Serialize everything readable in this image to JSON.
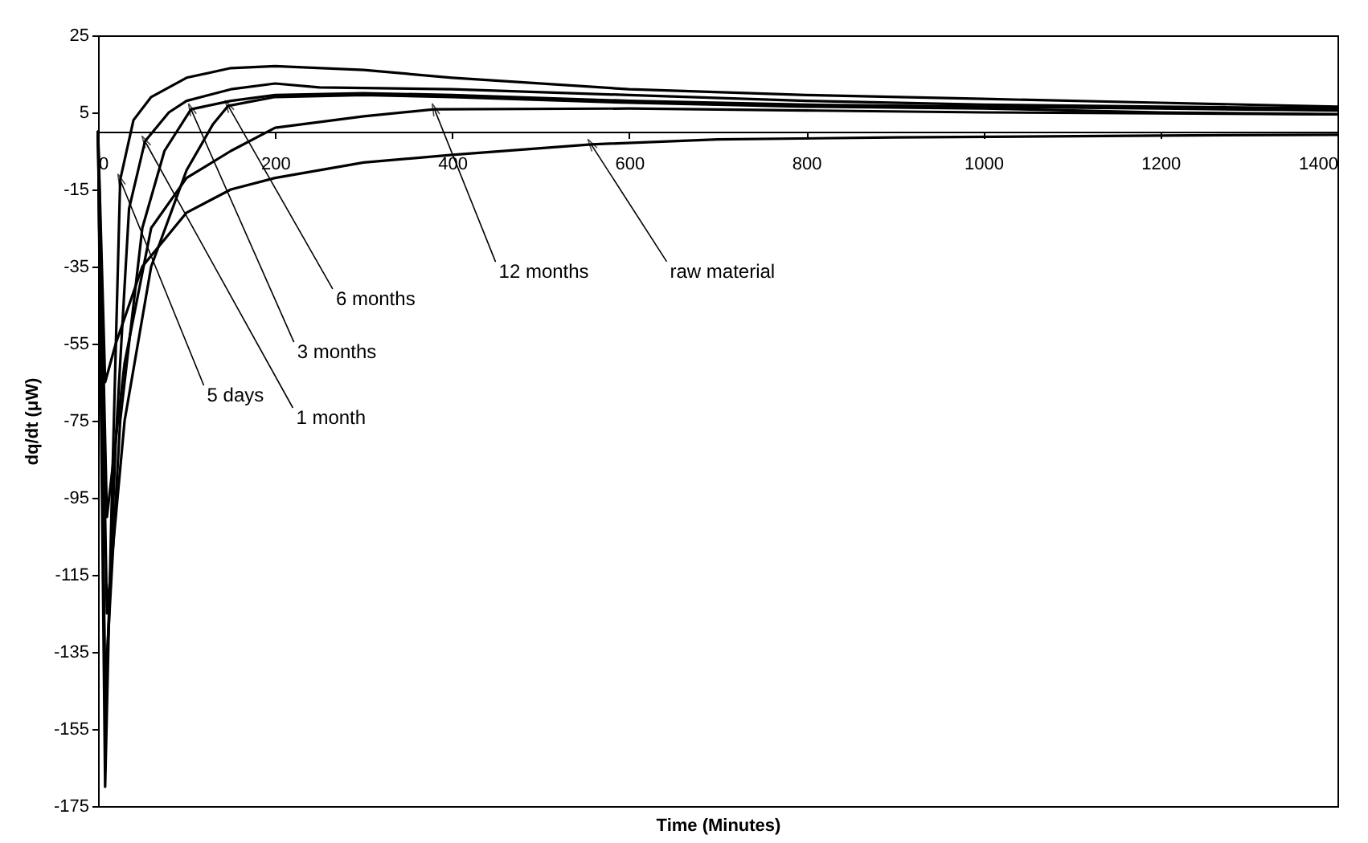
{
  "chart_data": {
    "type": "line",
    "xlabel": "Time (Minutes)",
    "ylabel": "dq/dt (μW)",
    "xlim": [
      0,
      1400
    ],
    "ylim": [
      -175,
      25
    ],
    "xticks": [
      0,
      200,
      400,
      600,
      800,
      1000,
      1200,
      1400
    ],
    "yticks": [
      25,
      5,
      -15,
      -35,
      -55,
      -75,
      -95,
      -115,
      -135,
      -155,
      -175
    ],
    "grid": false,
    "legend": false,
    "marker": "none",
    "line_style": "solid",
    "series": [
      {
        "color": "#000000",
        "x": [
          0,
          8,
          15,
          25,
          40,
          60,
          100,
          150,
          200,
          300,
          400,
          600,
          800,
          1000,
          1200,
          1400
        ],
        "values": [
          0,
          -170,
          -100,
          -12.5,
          3,
          9,
          14,
          16.5,
          17,
          16,
          14,
          11,
          9.5,
          8.5,
          7.5,
          6.5
        ]
      },
      {
        "color": "#000000",
        "x": [
          0,
          8,
          20,
          35,
          53,
          80,
          100,
          150,
          200,
          250,
          400,
          600,
          800,
          1000,
          1200,
          1400
        ],
        "values": [
          0,
          -150,
          -80,
          -20,
          -2.5,
          5,
          8,
          11,
          12.5,
          11.5,
          11,
          9.5,
          8,
          7,
          6.5,
          6
        ]
      },
      {
        "color": "#000000",
        "x": [
          0,
          8,
          25,
          50,
          75,
          105,
          150,
          200,
          300,
          400,
          600,
          800,
          1000,
          1200,
          1400
        ],
        "values": [
          0,
          -145,
          -75,
          -25,
          -5,
          5.8,
          8,
          9.5,
          10,
          9.5,
          8,
          7,
          6.5,
          6,
          5.5
        ]
      },
      {
        "color": "#000000",
        "x": [
          0,
          10,
          30,
          60,
          100,
          130,
          147,
          200,
          300,
          400,
          600,
          800,
          1000,
          1200,
          1400
        ],
        "values": [
          0,
          -125,
          -75,
          -35,
          -10,
          2,
          6.7,
          9,
          9.5,
          9,
          7.5,
          6.5,
          6,
          5,
          4.5
        ]
      },
      {
        "color": "#000000",
        "x": [
          0,
          10,
          30,
          60,
          100,
          150,
          200,
          300,
          380,
          600,
          800,
          1000,
          1400
        ],
        "values": [
          0,
          -100,
          -60,
          -25,
          -12,
          -5,
          1,
          4,
          5.8,
          6,
          5.5,
          5,
          4.5
        ]
      },
      {
        "color": "#000000",
        "x": [
          0,
          8,
          20,
          50,
          100,
          150,
          200,
          300,
          400,
          557,
          700,
          900,
          1200,
          1400
        ],
        "values": [
          0,
          -65,
          -55,
          -35,
          -21,
          -15,
          -12,
          -8,
          -6,
          -3.3,
          -2,
          -1.5,
          -1,
          -0.8
        ]
      }
    ],
    "annotations": [
      {
        "text": "5 days",
        "x": 25,
        "y": -12.5
      },
      {
        "text": "1 month",
        "x": 53,
        "y": -2.5
      },
      {
        "text": "3 months",
        "x": 105,
        "y": 5.8
      },
      {
        "text": "6 months",
        "x": 147,
        "y": 6.7
      },
      {
        "text": "12 months",
        "x": 380,
        "y": 5.8
      },
      {
        "text": "raw material",
        "x": 557,
        "y": -3.3
      }
    ]
  }
}
